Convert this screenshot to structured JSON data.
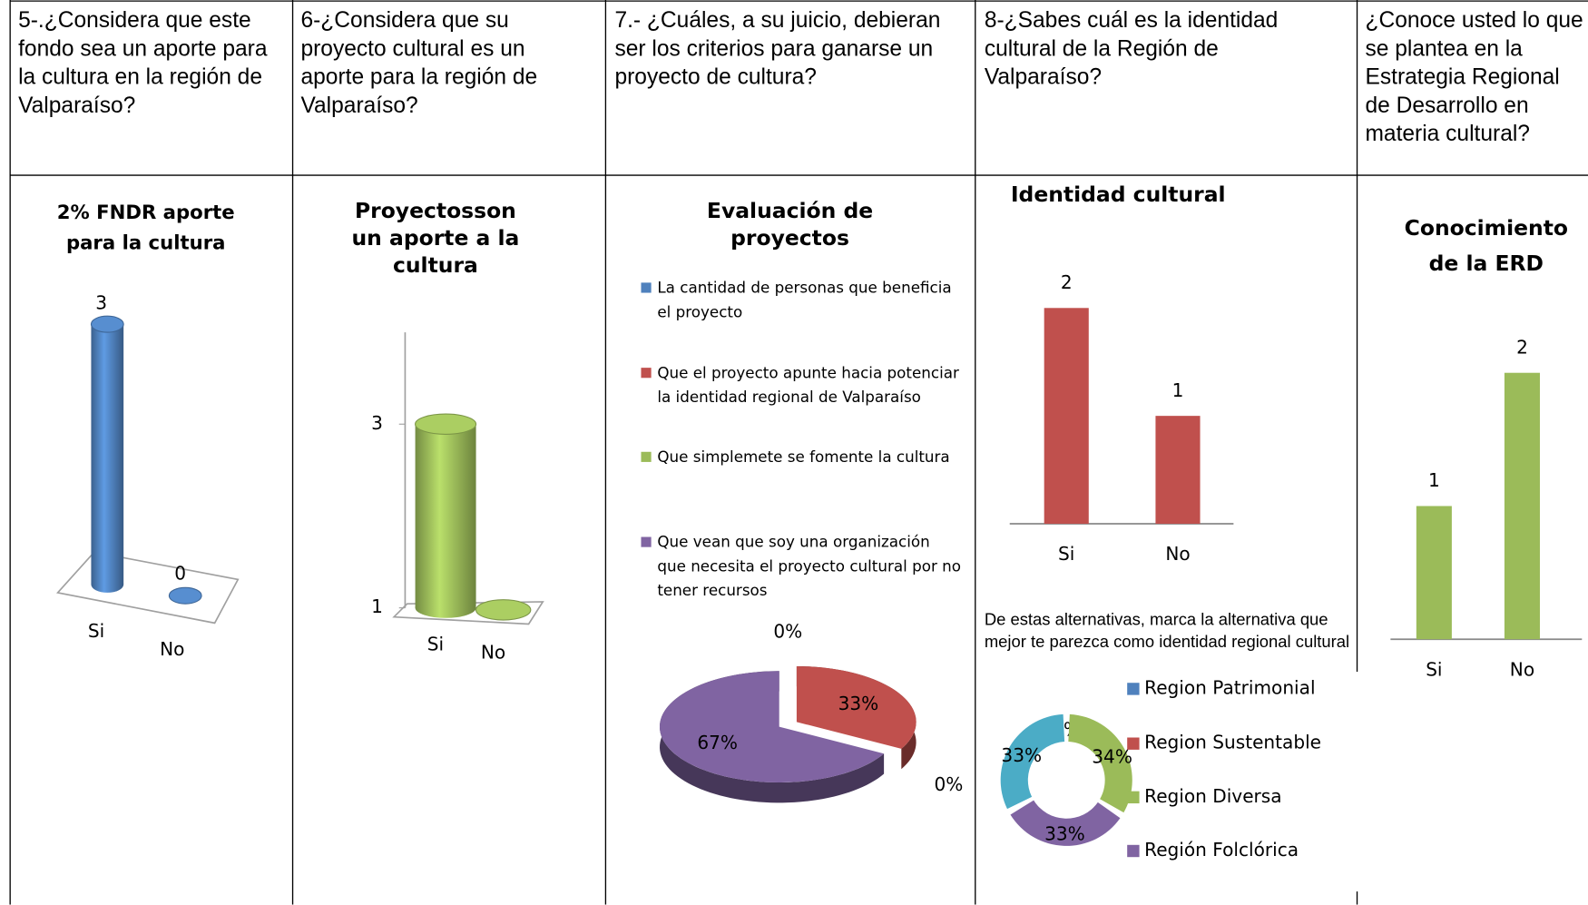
{
  "table": {
    "headers": [
      "5-.¿Considera que este fondo sea un aporte para la cultura en la región de Valparaíso?",
      "6-¿Considera que su proyecto cultural es un aporte para la región de Valparaíso?",
      "7.- ¿Cuáles, a su juicio, debieran ser los criterios para ganarse un proyecto de cultura?",
      "8-¿Sabes cuál es la identidad cultural de la Región de Valparaíso?",
      "¿Conoce usted lo que se plantea en la Estrategia Regional de Desarrollo en materia cultural?"
    ]
  },
  "chart_data": [
    {
      "type": "bar",
      "three_d": true,
      "title": "2% FNDR aporte para la cultura",
      "categories": [
        "Si",
        "No"
      ],
      "values": [
        3,
        0
      ],
      "color": "#4f81bd"
    },
    {
      "type": "bar",
      "three_d": true,
      "title": "Proyectosson un aporte a la cultura",
      "categories": [
        "Si",
        "No"
      ],
      "values": [
        3,
        1
      ],
      "color": "#9bbb59",
      "ylim": [
        1,
        4
      ],
      "yticks": [
        1,
        3
      ]
    },
    {
      "type": "pie",
      "three_d": true,
      "title": "Evaluación de proyectos",
      "categories": [
        "La cantidad de personas que beneficia el proyecto",
        "Que el proyecto apunte hacia potenciar la identidad regional de Valparaíso",
        "Que simplemete se fomente la cultura",
        "Que vean que soy una organización que necesita el proyecto cultural por no tener recursos"
      ],
      "values": [
        0,
        33,
        0,
        67
      ],
      "value_labels": [
        "0%",
        "33%",
        "0%",
        "67%"
      ],
      "colors": [
        "#4f81bd",
        "#c0504d",
        "#9bbb59",
        "#8064a2"
      ]
    },
    {
      "type": "bar",
      "title": "Identidad cultural",
      "categories": [
        "Si",
        "No"
      ],
      "values": [
        2,
        1
      ],
      "color": "#c0504d"
    },
    {
      "type": "doughnut",
      "title": "De estas alternativas, marca la alternativa que mejor te parezca como identidad regional cultural",
      "categories": [
        "Region Patrimonial",
        "Region Sustentable",
        "Region Diversa",
        "Región Folclórica",
        null
      ],
      "values": [
        0,
        null,
        34,
        33,
        33
      ],
      "value_labels": [
        "0%",
        null,
        "34%",
        "33%",
        "33%"
      ],
      "colors": [
        "#4f81bd",
        "#c0504d",
        "#9bbb59",
        "#8064a2",
        "#4bacc6"
      ]
    },
    {
      "type": "bar",
      "title": "Conocimiento de la ERD",
      "categories": [
        "Si",
        "No"
      ],
      "values": [
        1,
        2
      ],
      "color": "#9bbb59"
    }
  ]
}
